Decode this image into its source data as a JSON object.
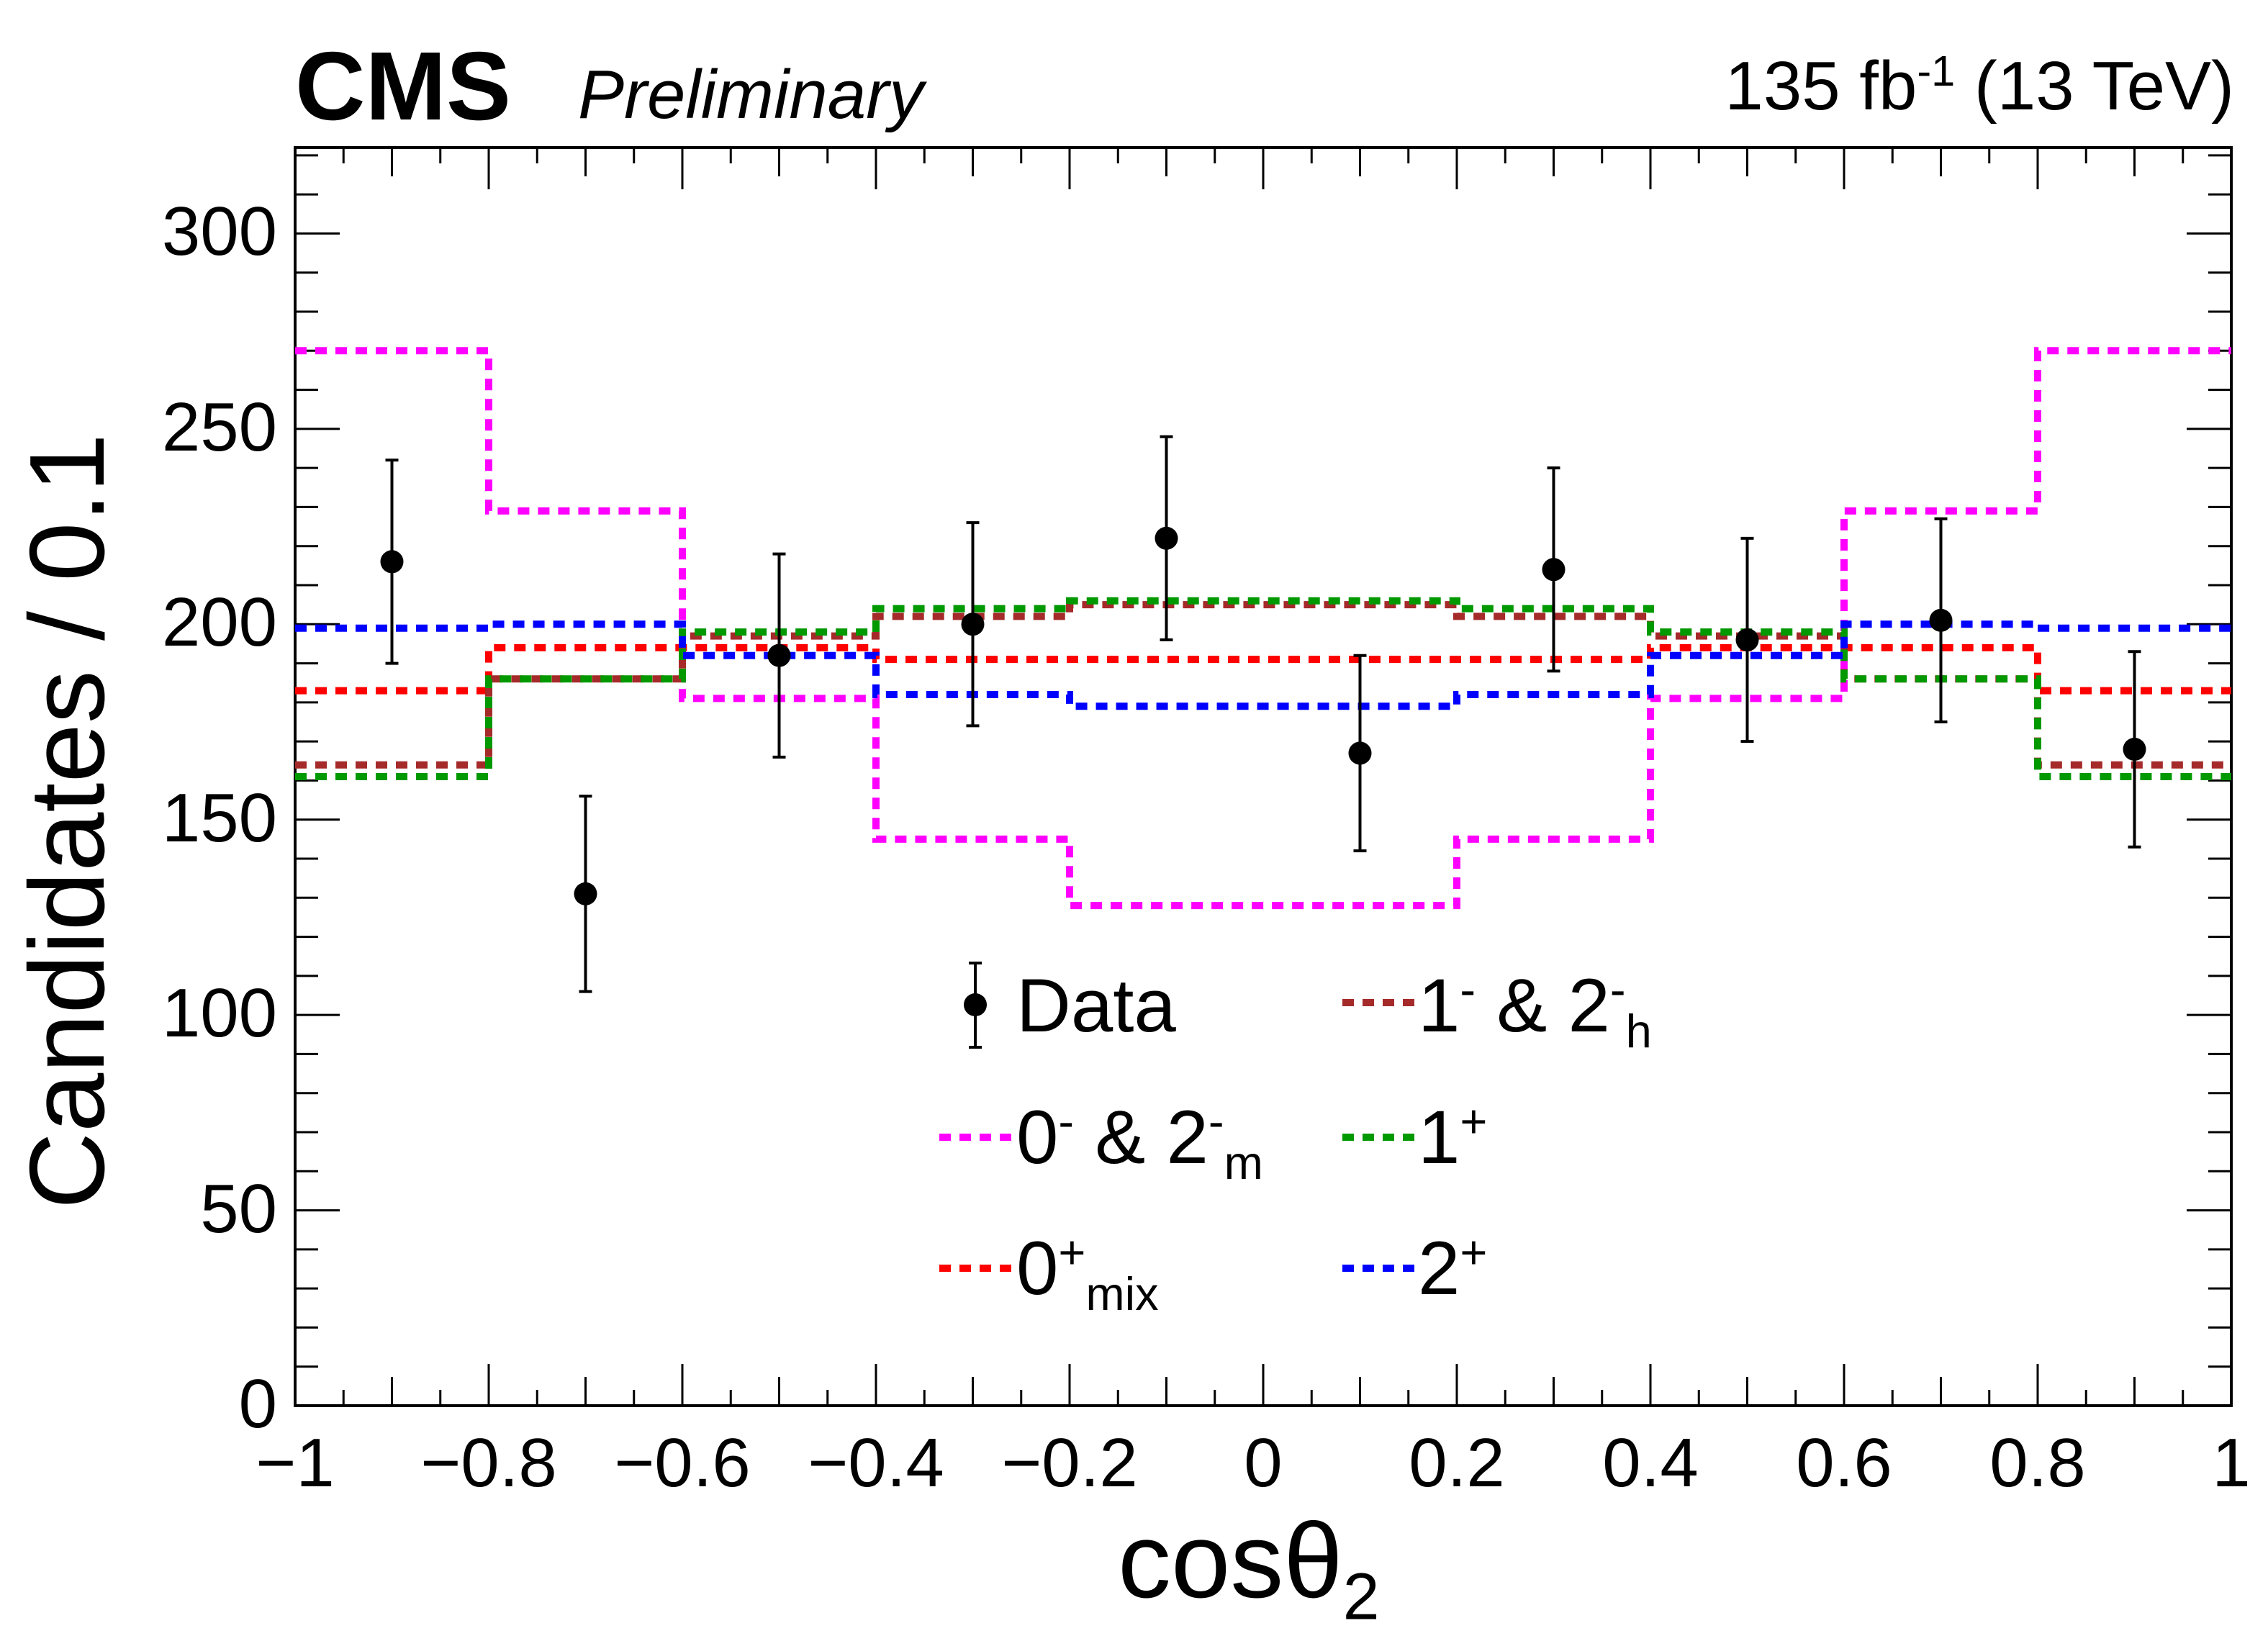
{
  "header": {
    "experiment": "CMS",
    "status": "Preliminary",
    "lumi_value": "135 fb",
    "lumi_exp": "-1",
    "energy": "(13 TeV)"
  },
  "chart_data": {
    "type": "histogram",
    "xlabel_base": "cosθ",
    "xlabel_sub": "2",
    "ylabel": "Candidates / 0.1",
    "xlim": [
      -1,
      1
    ],
    "ylim": [
      0,
      322
    ],
    "x_major_ticks": [
      -1,
      -0.8,
      -0.6,
      -0.4,
      -0.2,
      0,
      0.2,
      0.4,
      0.6,
      0.8,
      1
    ],
    "x_tick_labels": [
      "−1",
      "−0.8",
      "−0.6",
      "−0.4",
      "−0.2",
      "0",
      "0.2",
      "0.4",
      "0.6",
      "0.8",
      "1"
    ],
    "y_major_ticks": [
      0,
      50,
      100,
      150,
      200,
      250,
      300
    ],
    "y_tick_labels": [
      "0",
      "50",
      "100",
      "150",
      "200",
      "250",
      "300"
    ],
    "bin_edges": [
      -1,
      -0.8,
      -0.6,
      -0.4,
      -0.2,
      0,
      0.2,
      0.4,
      0.6,
      0.8,
      1
    ],
    "data": {
      "name": "Data",
      "x": [
        -0.9,
        -0.7,
        -0.5,
        -0.3,
        -0.1,
        0.1,
        0.3,
        0.5,
        0.7,
        0.9
      ],
      "y": [
        216,
        131,
        192,
        200,
        222,
        167,
        214,
        196,
        201,
        168
      ],
      "err": [
        26,
        25,
        26,
        26,
        26,
        25,
        26,
        26,
        26,
        25
      ]
    },
    "series": [
      {
        "name": "0- & 2-m",
        "color": "#ff00ff",
        "values": [
          270,
          229,
          181,
          145,
          128,
          128,
          145,
          181,
          229,
          270
        ]
      },
      {
        "name": "0+mix",
        "color": "#ff0000",
        "values": [
          183,
          194,
          194,
          191,
          191,
          191,
          191,
          194,
          194,
          183
        ]
      },
      {
        "name": "1- & 2-h",
        "color": "#a52a2a",
        "values": [
          164,
          186,
          197,
          202,
          205,
          205,
          202,
          197,
          186,
          164
        ]
      },
      {
        "name": "1+",
        "color": "#009900",
        "values": [
          161,
          186,
          198,
          204,
          206,
          206,
          204,
          198,
          186,
          161
        ]
      },
      {
        "name": "2+",
        "color": "#0000ff",
        "values": [
          199,
          200,
          192,
          182,
          179,
          179,
          182,
          192,
          200,
          199
        ]
      }
    ]
  },
  "legend": {
    "data": "Data",
    "pm_main": "0",
    "pm_sup": "-",
    "pm_mid": " & 2",
    "pm_sup2": "-",
    "pm_sub2": "m",
    "mix_main": "0",
    "mix_sup": "+",
    "mix_sub": "mix",
    "one_minus_main": "1",
    "one_minus_sup": "-",
    "one_minus_mid": " & 2",
    "one_minus_sup2": "-",
    "one_minus_sub2": "h",
    "one_plus_main": "1",
    "one_plus_sup": "+",
    "two_plus_main": "2",
    "two_plus_sup": "+"
  }
}
